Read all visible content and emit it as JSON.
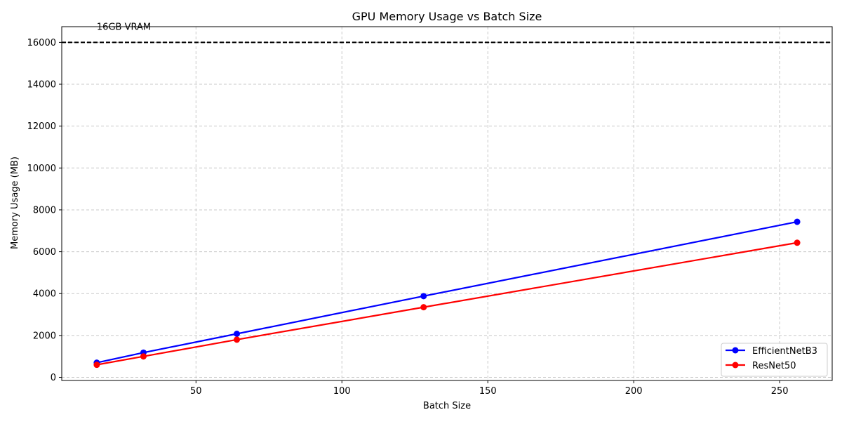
{
  "chart_data": {
    "type": "line",
    "title": "GPU Memory Usage vs Batch Size",
    "xlabel": "Batch Size",
    "ylabel": "Memory Usage (MB)",
    "xlim": [
      4.0,
      268.0
    ],
    "ylim": [
      -150,
      16750
    ],
    "xticks": [
      50,
      100,
      150,
      200,
      250
    ],
    "yticks": [
      0,
      2000,
      4000,
      6000,
      8000,
      10000,
      12000,
      14000,
      16000
    ],
    "grid": true,
    "legend_position": "lower-right",
    "x": [
      16,
      32,
      64,
      128,
      256
    ],
    "series": [
      {
        "name": "EfficientNetB3",
        "color": "#0000ff",
        "values": [
          700,
          1180,
          2080,
          3880,
          7430
        ]
      },
      {
        "name": "ResNet50",
        "color": "#ff0000",
        "values": [
          600,
          1000,
          1800,
          3350,
          6430
        ]
      }
    ],
    "reference_line": {
      "value": 16000,
      "label": "16GB VRAM",
      "color": "#000000",
      "style": "dashed"
    }
  }
}
